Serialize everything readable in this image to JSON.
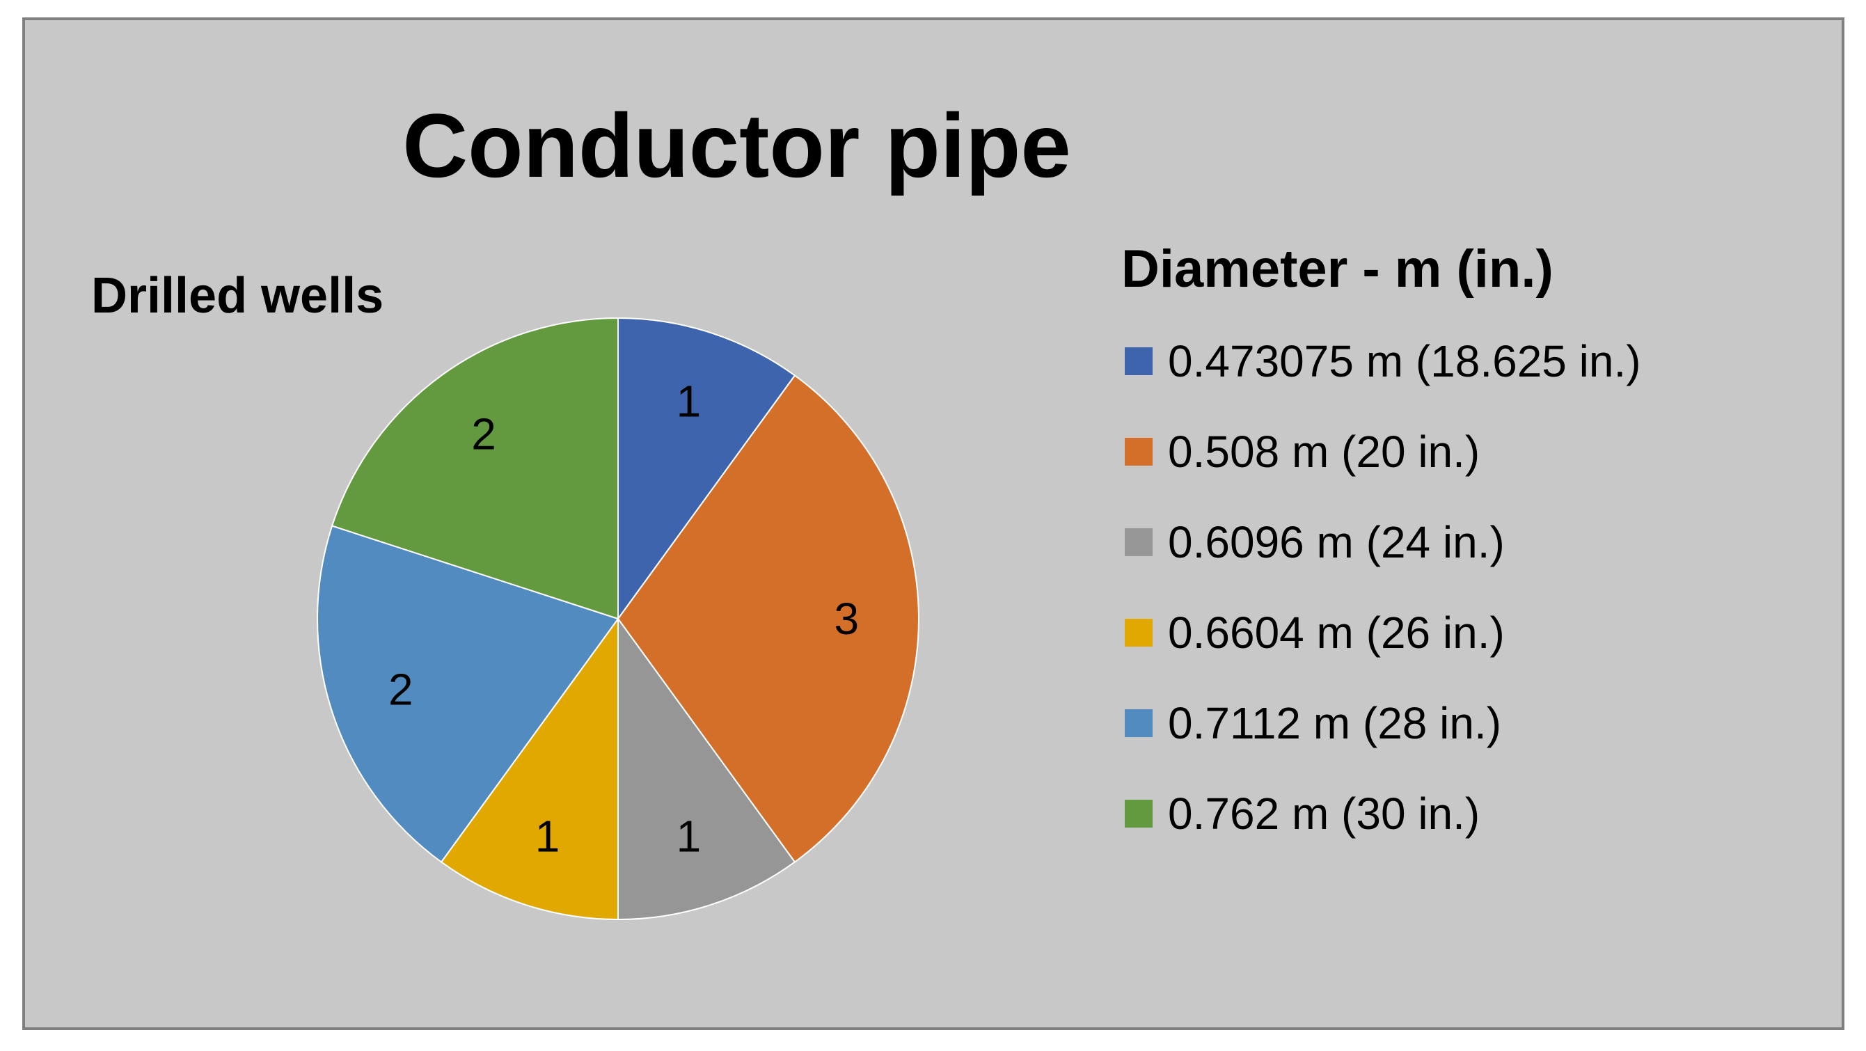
{
  "chart_data": {
    "type": "pie",
    "title": "Conductor pipe",
    "subtitle": "Drilled wells",
    "legend_title": "Diameter - m (in.)",
    "legend_position": "right",
    "categories": [
      "0.473075 m (18.625 in.)",
      "0.508 m (20 in.)",
      "0.6096 m (24 in.)",
      "0.6604 m (26 in.)",
      "0.7112 m (28 in.)",
      "0.762 m (30 in.)"
    ],
    "values": [
      1,
      3,
      1,
      1,
      2,
      2
    ],
    "colors": [
      "#3d64ad",
      "#d46f2a",
      "#969696",
      "#e0a800",
      "#528bbf",
      "#649a3f"
    ]
  }
}
